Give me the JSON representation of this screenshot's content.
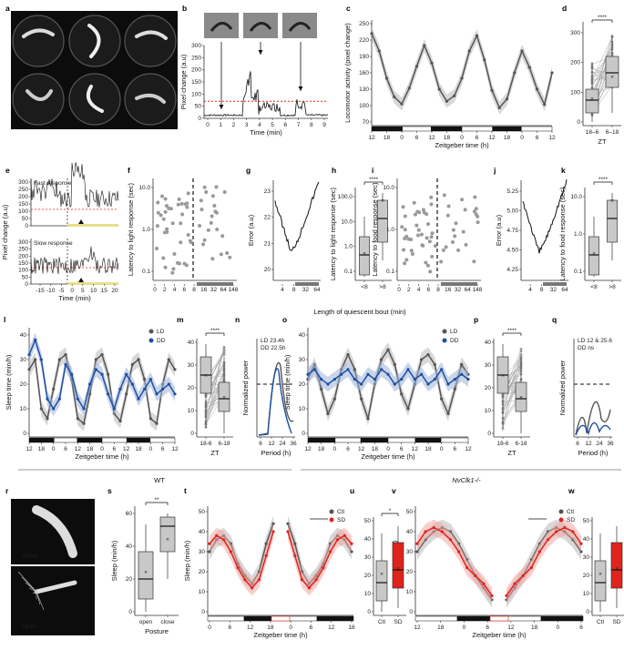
{
  "panels": {
    "a": {
      "letter": "a"
    },
    "b": {
      "letter": "b",
      "xlabel": "Time (min)",
      "ylabel": "Pixel change (a.u)",
      "xticks": [
        "0",
        "1",
        "2",
        "3",
        "4",
        "5",
        "6",
        "7",
        "8",
        "9"
      ],
      "yticks": [
        "0",
        "50",
        "100",
        "150",
        "200",
        "250",
        "300"
      ],
      "ylim": [
        0,
        320
      ],
      "threshold": 75
    },
    "c": {
      "letter": "c",
      "xlabel": "Zeitgeber time (h)",
      "ylabel": "Locomotor activity (pixel change)",
      "xticks": [
        "12",
        "18",
        "0",
        "6",
        "12",
        "18",
        "0",
        "6",
        "12",
        "18",
        "0",
        "6",
        "12"
      ],
      "yticks": [
        "70",
        "100",
        "130",
        "160",
        "190",
        "220",
        "250"
      ]
    },
    "d": {
      "letter": "d",
      "xlabel": "ZT",
      "xticks": [
        "18–6",
        "6–18"
      ],
      "yticks": [
        "0",
        "100",
        "200",
        "300"
      ],
      "sig": "****"
    },
    "e": {
      "letter": "e",
      "top_label": "Fast response",
      "bottom_label": "Slow response",
      "ylabel": "Pixel change (a.u)",
      "xlabel": "Time (min)",
      "xticks": [
        "-15",
        "-10",
        "-5",
        "0",
        "5",
        "10",
        "15",
        "20"
      ],
      "yticks": [
        "0",
        "50",
        "100",
        "150",
        "200",
        "250",
        "300"
      ]
    },
    "f": {
      "letter": "f",
      "ylabel": "Latency to light response (sec)",
      "yticks": [
        "0.1",
        "1.0",
        "10.0"
      ],
      "xticks": [
        "0",
        "2",
        "4",
        "6",
        "8",
        "16",
        "32",
        "64",
        "148"
      ]
    },
    "g": {
      "letter": "g",
      "ylabel": "Error (a.u)",
      "yticks": [
        "20",
        "21",
        "22",
        "23"
      ],
      "xticks": [
        "4",
        "8",
        "32",
        "64"
      ]
    },
    "h": {
      "letter": "h",
      "ylabel": "Latency to light response (sec)",
      "yticks": [
        "0.1",
        "1.0",
        "10.0",
        "100.0"
      ],
      "xticks": [
        "<8",
        ">8"
      ],
      "sig": "****"
    },
    "i": {
      "letter": "i",
      "ylabel": "Latency to food response (sec)",
      "yticks": [
        "0.1",
        "1.0",
        "10.0"
      ],
      "xticks": [
        "0",
        "2",
        "4",
        "6",
        "8",
        "16",
        "32",
        "64",
        "148"
      ]
    },
    "j": {
      "letter": "j",
      "ylabel": "Error (a.u)",
      "yticks": [
        "4.25",
        "4.50",
        "4.75",
        "5.00",
        "5.25"
      ],
      "xticks": [
        "4",
        "8",
        "32",
        "64"
      ]
    },
    "k": {
      "letter": "k",
      "ylabel": "Latency to food response (sec)",
      "yticks": [
        "0.1",
        "1.0",
        "10.0"
      ],
      "xticks": [
        "<8",
        ">8"
      ],
      "sig": "****"
    },
    "efk_xlabel": "Length of quiescent bout (min)",
    "l": {
      "letter": "l",
      "ylabel": "Sleep time (min/h)",
      "xlabel": "Zeitgeber time (h)",
      "xticks": [
        "12",
        "18",
        "0",
        "6",
        "12",
        "18",
        "0",
        "6",
        "12",
        "18",
        "0",
        "6",
        "12"
      ],
      "yticks": [
        "0",
        "10",
        "20",
        "30",
        "40"
      ],
      "legend": [
        "LD",
        "DD"
      ],
      "group": "WT"
    },
    "m": {
      "letter": "m",
      "xlabel": "ZT",
      "xticks": [
        "18-6",
        "6-18"
      ],
      "yticks": [
        "0",
        "10",
        "20",
        "30",
        "40"
      ],
      "sig": "****"
    },
    "n": {
      "letter": "n",
      "ylabel": "Normalized power",
      "xlabel": "Period (h)",
      "xticks": [
        "6",
        "12",
        "24",
        "36"
      ],
      "legend": [
        "LD   23.4h",
        "DD   22.5h"
      ]
    },
    "o": {
      "letter": "o",
      "ylabel": "Sleep time (min/h)",
      "xlabel": "Zeitgeber time (h)",
      "xticks": [
        "12",
        "18",
        "0",
        "6",
        "12",
        "18",
        "0",
        "6",
        "12",
        "18",
        "0",
        "6",
        "12"
      ],
      "yticks": [
        "0",
        "10",
        "20",
        "30",
        "40"
      ],
      "legend": [
        "LD",
        "DD"
      ],
      "group": "NvClk1-/-"
    },
    "p": {
      "letter": "p",
      "xlabel": "ZT",
      "xticks": [
        "18-6",
        "6-18"
      ],
      "yticks": [
        "0",
        "10",
        "20",
        "30",
        "40"
      ],
      "sig": "****"
    },
    "q": {
      "letter": "q",
      "ylabel": "Normalized power",
      "xlabel": "Period (h)",
      "xticks": [
        "6",
        "12",
        "24",
        "36"
      ],
      "legend": [
        "LD 12 & 25.6",
        "DD ns"
      ]
    },
    "r": {
      "letter": "r",
      "top_label": "Close",
      "bottom_label": "Open"
    },
    "s": {
      "letter": "s",
      "ylabel": "Sleep (min/h)",
      "xlabel": "Posture",
      "xticks": [
        "open",
        "close"
      ],
      "yticks": [
        "0",
        "20",
        "40",
        "60"
      ],
      "sig": "**"
    },
    "t": {
      "letter": "t",
      "ylabel": "Sleep (min/h)",
      "xlabel": "Zeitgeber time (h)",
      "xticks": [
        "0",
        "6",
        "12",
        "18",
        "0",
        "6",
        "12",
        "18"
      ],
      "yticks": [
        "0",
        "10",
        "20",
        "30",
        "40",
        "50"
      ],
      "legend": [
        "Ctl",
        "SD"
      ]
    },
    "u": {
      "letter": "u",
      "xticks": [
        "Ctl",
        "SD"
      ],
      "yticks": [
        "0",
        "10",
        "20",
        "30",
        "40",
        "50"
      ],
      "sig": "*"
    },
    "v": {
      "letter": "v",
      "ylabel": "Sleep (min/h)",
      "xlabel": "Zeitgeber time (h)",
      "xticks": [
        "12",
        "18",
        "0",
        "6",
        "12",
        "18",
        "0",
        "6"
      ],
      "yticks": [
        "0",
        "10",
        "20",
        "30",
        "40",
        "50"
      ],
      "legend": [
        "Ctl",
        "SD"
      ]
    },
    "w": {
      "letter": "w",
      "xticks": [
        "Ctl",
        "SD"
      ],
      "yticks": [
        "0",
        "10",
        "20",
        "30",
        "40",
        "50"
      ]
    }
  },
  "colors": {
    "dark": "#555555",
    "blue": "#1f4fa0",
    "red": "#e0231b",
    "band": "#b8b8b8",
    "lightblue": "#9db3da",
    "pink": "#f2a8a2"
  },
  "chart_data": [
    {
      "panel": "c",
      "type": "line",
      "x": [
        0,
        3,
        6,
        9,
        12,
        15,
        18,
        21,
        24,
        27,
        30,
        33,
        36,
        39,
        42,
        45,
        48,
        51,
        54,
        57,
        60,
        63,
        66,
        69,
        72
      ],
      "values": [
        232,
        200,
        150,
        116,
        103,
        132,
        172,
        210,
        178,
        130,
        108,
        118,
        150,
        200,
        228,
        184,
        128,
        96,
        112,
        160,
        200,
        170,
        130,
        102,
        160
      ]
    },
    {
      "panel": "l",
      "type": "line",
      "series": [
        {
          "name": "LD",
          "x": [
            0,
            3,
            6,
            9,
            12,
            15,
            18,
            21,
            24,
            27,
            30,
            33,
            36,
            39,
            42,
            45,
            48,
            51,
            54,
            57,
            60,
            63,
            66,
            69,
            72
          ],
          "values": [
            26,
            30,
            10,
            6,
            18,
            30,
            32,
            22,
            6,
            4,
            16,
            30,
            32,
            24,
            8,
            5,
            16,
            28,
            30,
            22,
            6,
            4,
            20,
            30,
            26
          ]
        },
        {
          "name": "DD",
          "x": [
            0,
            3,
            6,
            9,
            12,
            15,
            18,
            21,
            24,
            27,
            30,
            33,
            36,
            39,
            42,
            45,
            48,
            51,
            54,
            57,
            60,
            63,
            66,
            69,
            72
          ],
          "values": [
            32,
            38,
            30,
            14,
            10,
            14,
            28,
            24,
            14,
            10,
            20,
            26,
            24,
            16,
            10,
            18,
            24,
            20,
            14,
            18,
            22,
            16,
            18,
            20,
            16
          ]
        }
      ]
    },
    {
      "panel": "o",
      "type": "line",
      "series": [
        {
          "name": "LD",
          "x": [
            0,
            3,
            6,
            9,
            12,
            15,
            18,
            21,
            24,
            27,
            30,
            33,
            36,
            39,
            42,
            45,
            48,
            51,
            54,
            57,
            60,
            63,
            66,
            69,
            72
          ],
          "values": [
            22,
            28,
            18,
            8,
            14,
            26,
            32,
            26,
            14,
            6,
            20,
            30,
            34,
            28,
            16,
            10,
            20,
            30,
            32,
            28,
            14,
            8,
            18,
            28,
            24
          ]
        },
        {
          "name": "DD",
          "x": [
            0,
            3,
            6,
            9,
            12,
            15,
            18,
            21,
            24,
            27,
            30,
            33,
            36,
            39,
            42,
            45,
            48,
            51,
            54,
            57,
            60,
            63,
            66,
            69,
            72
          ],
          "values": [
            24,
            26,
            22,
            20,
            22,
            24,
            26,
            22,
            20,
            24,
            22,
            26,
            24,
            20,
            22,
            26,
            22,
            24,
            20,
            22,
            26,
            20,
            22,
            24,
            22
          ]
        }
      ]
    },
    {
      "panel": "t",
      "type": "line",
      "series": [
        {
          "name": "Ctl",
          "x": [
            0,
            2,
            4,
            6,
            8,
            10,
            12,
            14,
            16,
            18
          ],
          "values": [
            30,
            36,
            38,
            34,
            24,
            18,
            14,
            20,
            34,
            44
          ]
        },
        {
          "name": "SD",
          "x": [
            0,
            2,
            4,
            6,
            8,
            10,
            12,
            14,
            16,
            18
          ],
          "values": [
            34,
            38,
            36,
            30,
            22,
            16,
            12,
            16,
            28,
            40
          ]
        }
      ]
    },
    {
      "panel": "v",
      "type": "line",
      "series": [
        {
          "name": "Ctl",
          "x": [
            12,
            14,
            16,
            18,
            20,
            22,
            0,
            2,
            4,
            6
          ],
          "values": [
            30,
            36,
            40,
            42,
            40,
            34,
            26,
            18,
            12,
            6
          ]
        },
        {
          "name": "SD",
          "x": [
            12,
            14,
            16,
            18,
            20,
            22,
            0,
            2,
            4,
            6
          ],
          "values": [
            34,
            40,
            42,
            40,
            36,
            30,
            22,
            18,
            14,
            8
          ]
        }
      ]
    }
  ]
}
